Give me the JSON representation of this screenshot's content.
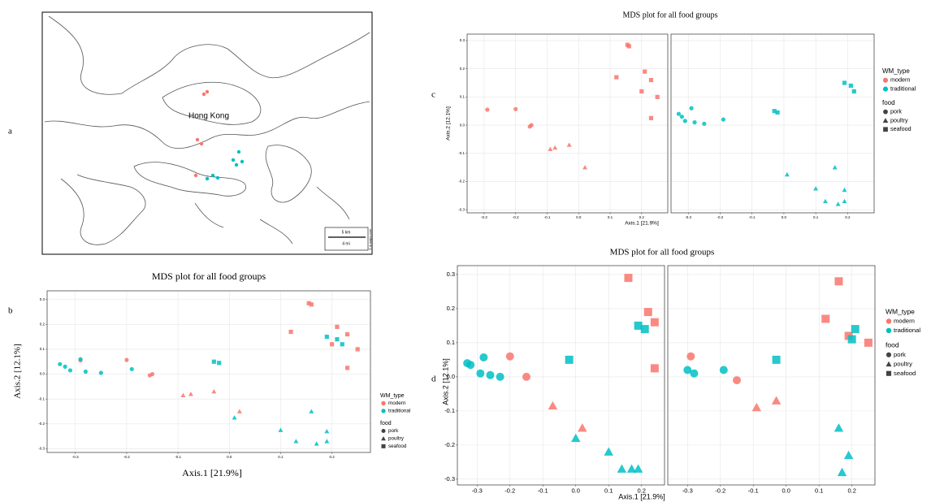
{
  "panel_labels": [
    "a",
    "b",
    "c",
    "d"
  ],
  "map": {
    "place_label": "Hong Kong",
    "scale": [
      "5 km",
      "4 mi"
    ],
    "credit": "© d-maps.com"
  },
  "chart_data": [
    {
      "type": "scatter",
      "title": "MDS plot for all food groups",
      "x_label": "Axis.1  [21.9%]",
      "y_label": "Axis.2  [12.1%]",
      "xlim": [
        -0.355,
        0.275
      ],
      "ylim": [
        -0.315,
        0.335
      ],
      "xticks": [
        -0.3,
        -0.2,
        -0.1,
        {
          "value": 0,
          "label": "0.0"
        },
        0.1,
        0.2
      ],
      "yticks": [
        -0.3,
        -0.2,
        -0.1,
        {
          "value": 0,
          "label": "0.0"
        },
        0.1,
        0.2,
        0.3
      ],
      "grid": true,
      "legend": {
        "color_title": "WM_type",
        "colors": [
          {
            "name": "modern",
            "color": "#F8766D"
          },
          {
            "name": "traditional",
            "color": "#00BFC4"
          }
        ],
        "shape_title": "food",
        "shapes": [
          {
            "name": "pork",
            "shape": "circle"
          },
          {
            "name": "poultry",
            "shape": "triangle"
          },
          {
            "name": "seafood",
            "shape": "square"
          }
        ]
      },
      "facets": [
        {
          "groups": [
            {
              "wm": "modern",
              "food": "pork",
              "x": [
                -0.29,
                -0.2,
                -0.155,
                -0.15
              ],
              "y": [
                0.055,
                0.057,
                -0.005,
                0.0
              ]
            },
            {
              "wm": "modern",
              "food": "poultry",
              "x": [
                -0.09,
                -0.075,
                -0.03,
                0.02
              ],
              "y": [
                -0.085,
                -0.08,
                -0.07,
                -0.15
              ]
            },
            {
              "wm": "modern",
              "food": "seafood",
              "x": [
                0.155,
                0.16,
                0.12,
                0.21,
                0.23,
                0.2,
                0.25,
                0.23
              ],
              "y": [
                0.285,
                0.28,
                0.17,
                0.19,
                0.16,
                0.12,
                0.1,
                0.025
              ]
            },
            {
              "wm": "traditional",
              "food": "pork",
              "x": [
                -0.33,
                -0.32,
                -0.31,
                -0.29,
                -0.28,
                -0.25,
                -0.19
              ],
              "y": [
                0.04,
                0.03,
                0.015,
                0.06,
                0.01,
                0.005,
                0.02
              ]
            },
            {
              "wm": "traditional",
              "food": "poultry",
              "x": [
                0.01,
                0.1,
                0.16,
                0.13,
                0.17,
                0.19,
                0.19
              ],
              "y": [
                -0.175,
                -0.225,
                -0.15,
                -0.27,
                -0.28,
                -0.27,
                -0.23
              ]
            },
            {
              "wm": "traditional",
              "food": "seafood",
              "x": [
                -0.03,
                -0.02,
                0.19,
                0.21,
                0.22
              ],
              "y": [
                0.05,
                0.045,
                0.15,
                0.14,
                0.12
              ]
            }
          ]
        }
      ]
    },
    {
      "type": "scatter",
      "title": "MDS plot for all food groups",
      "x_label": "Axis.1  [21.9%]",
      "y_label": "Axis.2  [12.1%]",
      "xlim": [
        -0.354,
        0.283
      ],
      "ylim": [
        -0.311,
        0.323
      ],
      "xticks": [
        -0.3,
        -0.2,
        -0.1,
        {
          "value": 0,
          "label": "0.0"
        },
        0.1,
        0.2
      ],
      "yticks": [
        -0.3,
        -0.2,
        -0.1,
        {
          "value": 0,
          "label": "0.0"
        },
        0.1,
        0.2,
        0.3
      ],
      "grid": true,
      "legend": {
        "color_title": "WM_type",
        "colors": [
          {
            "name": "modern",
            "color": "#F8766D"
          },
          {
            "name": "traditional",
            "color": "#00BFC4"
          }
        ],
        "shape_title": "food",
        "shapes": [
          {
            "name": "pork",
            "shape": "circle"
          },
          {
            "name": "poultry",
            "shape": "triangle"
          },
          {
            "name": "seafood",
            "shape": "square"
          }
        ]
      },
      "facets": [
        {
          "groups": [
            {
              "wm": "modern",
              "food": "pork",
              "x": [
                -0.29,
                -0.2,
                -0.155,
                -0.15
              ],
              "y": [
                0.055,
                0.057,
                -0.005,
                0.0
              ]
            },
            {
              "wm": "modern",
              "food": "poultry",
              "x": [
                -0.09,
                -0.075,
                -0.03,
                0.02
              ],
              "y": [
                -0.085,
                -0.08,
                -0.07,
                -0.15
              ]
            },
            {
              "wm": "modern",
              "food": "seafood",
              "x": [
                0.155,
                0.16,
                0.12,
                0.21,
                0.23,
                0.2,
                0.25,
                0.23
              ],
              "y": [
                0.285,
                0.28,
                0.17,
                0.19,
                0.16,
                0.12,
                0.1,
                0.025
              ]
            }
          ]
        },
        {
          "groups": [
            {
              "wm": "traditional",
              "food": "pork",
              "x": [
                -0.33,
                -0.32,
                -0.31,
                -0.29,
                -0.28,
                -0.25,
                -0.19
              ],
              "y": [
                0.04,
                0.03,
                0.015,
                0.06,
                0.01,
                0.005,
                0.02
              ]
            },
            {
              "wm": "traditional",
              "food": "poultry",
              "x": [
                0.01,
                0.1,
                0.16,
                0.13,
                0.17,
                0.19,
                0.19
              ],
              "y": [
                -0.175,
                -0.225,
                -0.15,
                -0.27,
                -0.28,
                -0.27,
                -0.23
              ]
            },
            {
              "wm": "traditional",
              "food": "seafood",
              "x": [
                -0.03,
                -0.02,
                0.19,
                0.21,
                0.22
              ],
              "y": [
                0.05,
                0.045,
                0.15,
                0.14,
                0.12
              ]
            }
          ]
        }
      ]
    },
    {
      "type": "scatter",
      "title": "MDS plot for all food groups",
      "x_label": "Axis.1  [21.9%]",
      "y_label": "Axis.2  [12.1%]",
      "xlim": [
        -0.36,
        0.27
      ],
      "ylim": [
        -0.317,
        0.326
      ],
      "xticks": [
        -0.3,
        -0.2,
        -0.1,
        {
          "value": 0,
          "label": "0.0"
        },
        0.1,
        0.2
      ],
      "yticks": [
        -0.3,
        -0.2,
        -0.1,
        {
          "value": 0,
          "label": "0.0"
        },
        0.1,
        0.2,
        0.3
      ],
      "grid": true,
      "legend": {
        "color_title": "WM_type",
        "colors": [
          {
            "name": "modern",
            "color": "#F8766D"
          },
          {
            "name": "traditional",
            "color": "#00BFC4"
          }
        ],
        "shape_title": "food",
        "shapes": [
          {
            "name": "pork",
            "shape": "circle"
          },
          {
            "name": "poultry",
            "shape": "triangle"
          },
          {
            "name": "seafood",
            "shape": "square"
          }
        ]
      },
      "facets": [
        {
          "groups": [
            {
              "wm": "modern",
              "food": "pork",
              "x": [
                -0.2,
                -0.15
              ],
              "y": [
                0.06,
                0.0
              ]
            },
            {
              "wm": "modern",
              "food": "poultry",
              "x": [
                -0.07,
                0.02
              ],
              "y": [
                -0.085,
                -0.15
              ]
            },
            {
              "wm": "modern",
              "food": "seafood",
              "x": [
                0.16,
                0.22,
                0.24,
                0.24
              ],
              "y": [
                0.29,
                0.19,
                0.16,
                0.025
              ]
            },
            {
              "wm": "traditional",
              "food": "pork",
              "x": [
                -0.33,
                -0.32,
                -0.28,
                -0.29,
                -0.26,
                -0.23
              ],
              "y": [
                0.04,
                0.035,
                0.057,
                0.01,
                0.005,
                0.0
              ]
            },
            {
              "wm": "traditional",
              "food": "poultry",
              "x": [
                0.0,
                0.1,
                0.14,
                0.17,
                0.19
              ],
              "y": [
                -0.18,
                -0.22,
                -0.27,
                -0.27,
                -0.27
              ]
            },
            {
              "wm": "traditional",
              "food": "seafood",
              "x": [
                -0.02,
                0.19,
                0.21
              ],
              "y": [
                0.05,
                0.15,
                0.14
              ]
            }
          ]
        },
        {
          "groups": [
            {
              "wm": "modern",
              "food": "pork",
              "x": [
                -0.29,
                -0.15
              ],
              "y": [
                0.06,
                -0.01
              ]
            },
            {
              "wm": "modern",
              "food": "poultry",
              "x": [
                -0.09,
                -0.03
              ],
              "y": [
                -0.09,
                -0.07
              ]
            },
            {
              "wm": "modern",
              "food": "seafood",
              "x": [
                0.16,
                0.12,
                0.19,
                0.25
              ],
              "y": [
                0.28,
                0.17,
                0.12,
                0.1
              ]
            },
            {
              "wm": "traditional",
              "food": "pork",
              "x": [
                -0.3,
                -0.28,
                -0.19
              ],
              "y": [
                0.02,
                0.01,
                0.02
              ]
            },
            {
              "wm": "traditional",
              "food": "poultry",
              "x": [
                0.16,
                0.19,
                0.17
              ],
              "y": [
                -0.15,
                -0.23,
                -0.28
              ]
            },
            {
              "wm": "traditional",
              "food": "seafood",
              "x": [
                -0.03,
                0.21,
                0.2
              ],
              "y": [
                0.05,
                0.14,
                0.11
              ]
            }
          ]
        }
      ]
    }
  ]
}
